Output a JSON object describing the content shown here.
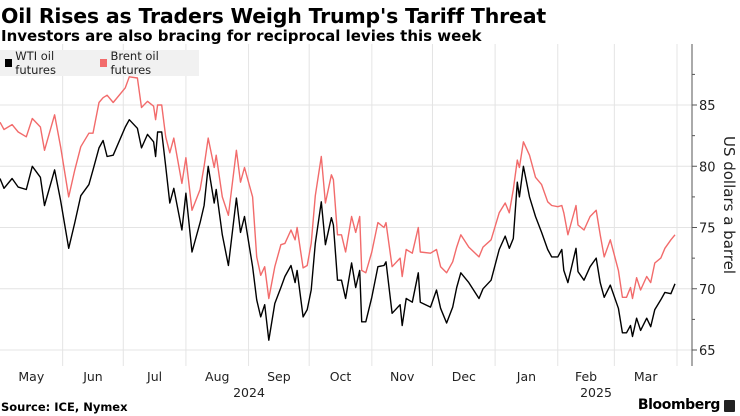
{
  "chart_data": {
    "type": "line",
    "title": "Oil Rises as Traders Weigh Trump's Tariff Threat",
    "subtitle": "Investors are also bracing for reciprocal levies this week",
    "ylabel": "US dollars a barrel",
    "xlabel": "",
    "ylim": [
      63.8,
      90
    ],
    "y_ticks": [
      65,
      70,
      75,
      80,
      85
    ],
    "x_range": [
      "2024-05-01",
      "2025-04-01"
    ],
    "x_ticks": [
      "May",
      "Jun",
      "Jul",
      "Aug",
      "Sep",
      "Oct",
      "Nov",
      "Dec",
      "Jan",
      "Feb",
      "Mar"
    ],
    "year_labels": [
      "2024",
      "2025"
    ],
    "grid": true,
    "legend_position": "top-left",
    "x": [
      "2024-05-01",
      "2024-05-03",
      "2024-05-07",
      "2024-05-10",
      "2024-05-14",
      "2024-05-17",
      "2024-05-21",
      "2024-05-23",
      "2024-05-28",
      "2024-05-31",
      "2024-06-04",
      "2024-06-07",
      "2024-06-10",
      "2024-06-14",
      "2024-06-16",
      "2024-06-19",
      "2024-06-21",
      "2024-06-23",
      "2024-06-26",
      "2024-07-02",
      "2024-07-04",
      "2024-07-08",
      "2024-07-10",
      "2024-07-13",
      "2024-07-16",
      "2024-07-17",
      "2024-07-18",
      "2024-07-20",
      "2024-07-22",
      "2024-07-24",
      "2024-07-26",
      "2024-07-30",
      "2024-08-01",
      "2024-08-04",
      "2024-08-08",
      "2024-08-10",
      "2024-08-12",
      "2024-08-15",
      "2024-08-16",
      "2024-08-19",
      "2024-08-22",
      "2024-08-26",
      "2024-08-28",
      "2024-08-30",
      "2024-09-03",
      "2024-09-05",
      "2024-09-07",
      "2024-09-09",
      "2024-09-11",
      "2024-09-14",
      "2024-09-17",
      "2024-09-19",
      "2024-09-22",
      "2024-09-24",
      "2024-09-25",
      "2024-09-28",
      "2024-09-30",
      "2024-10-02",
      "2024-10-04",
      "2024-10-07",
      "2024-10-09",
      "2024-10-12",
      "2024-10-13",
      "2024-10-15",
      "2024-10-17",
      "2024-10-19",
      "2024-10-22",
      "2024-10-24",
      "2024-10-26",
      "2024-10-27",
      "2024-10-29",
      "2024-11-01",
      "2024-11-04",
      "2024-11-07",
      "2024-11-08",
      "2024-11-11",
      "2024-11-15",
      "2024-11-16",
      "2024-11-18",
      "2024-11-21",
      "2024-11-24",
      "2024-11-25",
      "2024-11-30",
      "2024-12-03",
      "2024-12-05",
      "2024-12-08",
      "2024-12-11",
      "2024-12-13",
      "2024-12-15",
      "2024-12-19",
      "2024-12-24",
      "2024-12-26",
      "2024-12-30",
      "2025-01-03",
      "2025-01-06",
      "2025-01-08",
      "2025-01-10",
      "2025-01-12",
      "2025-01-13",
      "2025-01-15",
      "2025-01-18",
      "2025-01-21",
      "2025-01-24",
      "2025-01-27",
      "2025-01-29",
      "2025-02-01",
      "2025-02-03",
      "2025-02-04",
      "2025-02-06",
      "2025-02-10",
      "2025-02-11",
      "2025-02-14",
      "2025-02-17",
      "2025-02-20",
      "2025-02-22",
      "2025-02-24",
      "2025-02-27",
      "2025-03-03",
      "2025-03-05",
      "2025-03-07",
      "2025-03-09",
      "2025-03-10",
      "2025-03-12",
      "2025-03-14",
      "2025-03-17",
      "2025-03-19",
      "2025-03-21",
      "2025-03-24",
      "2025-03-26",
      "2025-03-29",
      "2025-03-31"
    ],
    "series": [
      {
        "name": "WTI oil futures",
        "color": "#000000",
        "values": [
          79.0,
          78.2,
          79.0,
          78.3,
          78.1,
          80.0,
          79.1,
          76.8,
          79.7,
          77.2,
          73.3,
          75.4,
          77.6,
          78.5,
          79.7,
          81.5,
          82.1,
          80.8,
          80.9,
          83.2,
          83.8,
          83.1,
          81.5,
          82.6,
          82.0,
          80.8,
          82.8,
          82.8,
          80.0,
          77.0,
          78.2,
          74.8,
          77.8,
          73.0,
          75.4,
          76.8,
          80.0,
          77.0,
          78.1,
          74.4,
          71.9,
          77.4,
          74.6,
          75.9,
          71.8,
          69.1,
          67.7,
          68.7,
          65.8,
          68.8,
          70.1,
          71.0,
          71.9,
          70.5,
          71.5,
          67.7,
          68.3,
          69.9,
          73.7,
          77.1,
          73.6,
          75.8,
          75.2,
          70.7,
          70.7,
          69.2,
          72.1,
          70.1,
          71.5,
          67.3,
          67.3,
          69.3,
          71.8,
          71.9,
          72.2,
          68.0,
          68.7,
          67.0,
          69.2,
          68.9,
          71.3,
          68.9,
          68.5,
          69.9,
          68.4,
          67.2,
          68.5,
          70.1,
          71.3,
          70.5,
          69.2,
          70.0,
          70.7,
          73.2,
          74.3,
          73.3,
          74.1,
          78.7,
          77.5,
          80.0,
          77.5,
          75.9,
          74.6,
          73.2,
          72.6,
          72.6,
          73.2,
          71.5,
          70.5,
          73.3,
          71.4,
          70.7,
          71.8,
          72.5,
          70.5,
          69.3,
          70.3,
          68.4,
          66.4,
          66.4,
          67.0,
          66.1,
          67.6,
          66.6,
          67.6,
          66.9,
          68.3,
          69.1,
          69.7,
          69.6,
          70.4
        ]
      },
      {
        "name": "Brent oil futures",
        "color": "#f26b6b",
        "values": [
          83.6,
          83.0,
          83.4,
          82.8,
          82.4,
          83.9,
          83.2,
          81.3,
          84.2,
          81.6,
          77.5,
          79.7,
          81.6,
          82.7,
          82.7,
          85.2,
          85.6,
          85.8,
          85.2,
          86.4,
          87.3,
          87.2,
          84.8,
          85.3,
          84.9,
          83.8,
          85.0,
          85.0,
          82.4,
          81.1,
          82.3,
          78.6,
          80.7,
          76.4,
          78.1,
          80.0,
          82.3,
          79.9,
          80.9,
          77.5,
          76.0,
          81.3,
          78.7,
          79.9,
          77.5,
          72.6,
          71.1,
          71.8,
          69.2,
          71.8,
          73.6,
          73.7,
          74.8,
          74.0,
          75.0,
          71.7,
          71.9,
          73.7,
          77.6,
          80.8,
          77.0,
          79.3,
          78.9,
          74.4,
          74.4,
          73.0,
          75.9,
          74.6,
          75.9,
          71.5,
          71.3,
          73.0,
          75.4,
          75.0,
          75.4,
          71.8,
          72.5,
          71.0,
          73.2,
          72.9,
          75.0,
          73.0,
          72.9,
          73.2,
          71.8,
          71.3,
          72.2,
          73.4,
          74.4,
          73.4,
          72.6,
          73.4,
          74.0,
          76.2,
          77.0,
          76.2,
          78.1,
          80.5,
          79.9,
          82.0,
          80.9,
          79.1,
          78.5,
          77.1,
          76.8,
          76.7,
          76.8,
          76.2,
          74.4,
          76.8,
          75.2,
          74.8,
          75.9,
          76.4,
          74.4,
          72.6,
          74.0,
          71.5,
          69.3,
          69.3,
          70.1,
          69.2,
          70.9,
          69.9,
          71.0,
          70.5,
          72.1,
          72.5,
          73.3,
          74.0,
          74.4
        ]
      }
    ]
  },
  "footer": {
    "source": "Source: ICE, Nymex",
    "brand": "Bloomberg"
  }
}
